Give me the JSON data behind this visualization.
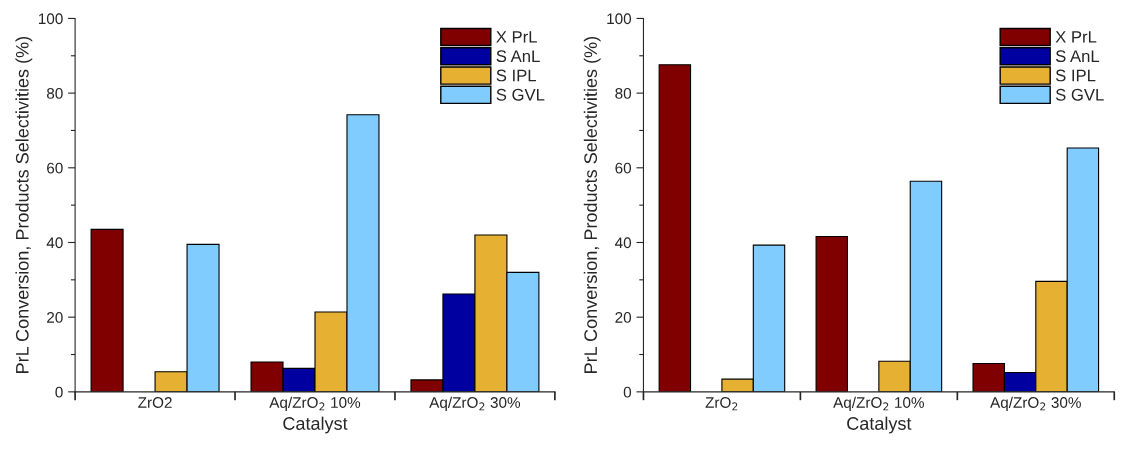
{
  "chart_data": [
    {
      "type": "bar",
      "xlabel": "Catalyst",
      "ylabel": "PrL Conversion, Products Selectivities (%)",
      "categories": [
        "ZrO2",
        "Aq/ZrO$_{2}$ 10%",
        "Aq/ZrO$_{2}$ 30%"
      ],
      "series": [
        {
          "name": "X PrL",
          "color": "#800000",
          "values": [
            43.5,
            8.0,
            3.2
          ]
        },
        {
          "name": "S AnL",
          "color": "#0000a0",
          "values": [
            null,
            6.3,
            26.2
          ]
        },
        {
          "name": "S IPL",
          "color": "#e6b033",
          "values": [
            5.4,
            21.4,
            42.0
          ]
        },
        {
          "name": "S GVL",
          "color": "#80ccff",
          "values": [
            39.5,
            74.2,
            32.0
          ]
        }
      ],
      "ylim": [
        0,
        100
      ],
      "yticks": [
        0,
        {
          "value": 10,
          "label": null
        },
        20,
        {
          "value": 30,
          "label": null
        },
        40,
        {
          "value": 50,
          "label": null
        },
        60,
        {
          "value": 70,
          "label": null
        },
        80,
        {
          "value": 90,
          "label": null
        },
        100
      ],
      "legend": "top right",
      "grid": false
    },
    {
      "type": "bar",
      "xlabel": "Catalyst",
      "ylabel": "PrL Conversion, Products Selectivities (%)",
      "categories": [
        "ZrO$_{2}$",
        "Aq/ZrO$_{2}$ 10%",
        "Aq/ZrO$_{2}$ 30%"
      ],
      "series": [
        {
          "name": "X PrL",
          "color": "#800000",
          "values": [
            87.6,
            41.6,
            7.6
          ]
        },
        {
          "name": "S AnL",
          "color": "#0000a0",
          "values": [
            null,
            null,
            5.2
          ]
        },
        {
          "name": "S IPL",
          "color": "#e6b033",
          "values": [
            3.4,
            8.2,
            29.6
          ]
        },
        {
          "name": "S GVL",
          "color": "#80ccff",
          "values": [
            39.3,
            56.4,
            65.3
          ]
        }
      ],
      "ylim": [
        0,
        100
      ],
      "yticks": [
        0,
        {
          "value": 10,
          "label": null
        },
        20,
        {
          "value": 30,
          "label": null
        },
        40,
        {
          "value": 50,
          "label": null
        },
        60,
        {
          "value": 70,
          "label": null
        },
        80,
        {
          "value": 90,
          "label": null
        },
        100
      ],
      "legend": "top right",
      "grid": false
    }
  ]
}
